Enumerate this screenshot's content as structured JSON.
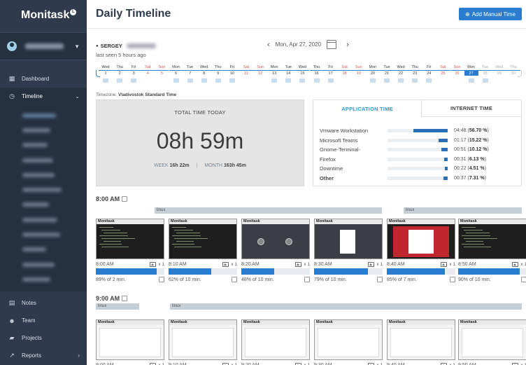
{
  "app": {
    "name": "Monitask"
  },
  "sidebar": {
    "items": [
      {
        "label": "Dashboard",
        "icon": "dashboard-icon"
      },
      {
        "label": "Timeline",
        "icon": "clock-icon"
      }
    ],
    "bottom": [
      {
        "label": "Notes",
        "icon": "note-icon"
      },
      {
        "label": "Team",
        "icon": "team-icon"
      },
      {
        "label": "Projects",
        "icon": "folder-icon"
      },
      {
        "label": "Reports",
        "icon": "chart-icon"
      }
    ]
  },
  "header": {
    "title": "Daily Timeline",
    "add_button": "Add Manual Time"
  },
  "user": {
    "name": "SERGEY",
    "last_seen": "last seen 5 hours ago"
  },
  "date_nav": {
    "date": "Mon, Apr 27, 2020"
  },
  "calendar": {
    "days": [
      {
        "d": "Wed",
        "n": "1"
      },
      {
        "d": "Thu",
        "n": "2"
      },
      {
        "d": "Fri",
        "n": "3"
      },
      {
        "d": "Sat",
        "n": "4",
        "w": true
      },
      {
        "d": "Sun",
        "n": "5",
        "w": true
      },
      {
        "d": "Mon",
        "n": "6"
      },
      {
        "d": "Tue",
        "n": "7"
      },
      {
        "d": "Wed",
        "n": "8"
      },
      {
        "d": "Thu",
        "n": "9"
      },
      {
        "d": "Fri",
        "n": "10"
      },
      {
        "d": "Sat",
        "n": "11",
        "w": true
      },
      {
        "d": "Sun",
        "n": "12",
        "w": true
      },
      {
        "d": "Mon",
        "n": "13"
      },
      {
        "d": "Tue",
        "n": "14"
      },
      {
        "d": "Wed",
        "n": "15"
      },
      {
        "d": "Thu",
        "n": "16"
      },
      {
        "d": "Fri",
        "n": "17"
      },
      {
        "d": "Sat",
        "n": "18",
        "w": true
      },
      {
        "d": "Sun",
        "n": "19",
        "w": true
      },
      {
        "d": "Mon",
        "n": "20"
      },
      {
        "d": "Tue",
        "n": "21"
      },
      {
        "d": "Wed",
        "n": "22"
      },
      {
        "d": "Thu",
        "n": "23"
      },
      {
        "d": "Fri",
        "n": "24"
      },
      {
        "d": "Sat",
        "n": "25",
        "w": true
      },
      {
        "d": "Sun",
        "n": "26",
        "w": true
      },
      {
        "d": "Mon",
        "n": "27",
        "today": true
      },
      {
        "d": "Tue",
        "n": "28",
        "faded": true
      },
      {
        "d": "Wed",
        "n": "29",
        "faded": true
      },
      {
        "d": "Thu",
        "n": "30",
        "faded": true
      }
    ],
    "active_days": [
      "1",
      "2",
      "3",
      "6",
      "7",
      "8",
      "9",
      "10",
      "13",
      "14",
      "15",
      "16",
      "17",
      "20",
      "21",
      "22",
      "23",
      "24",
      "27",
      "28"
    ]
  },
  "timezone": {
    "label": "Timezone:",
    "value": "Vladivostok Standard Time"
  },
  "totals": {
    "label": "TOTAL TIME TODAY",
    "today": "08h 59m",
    "week_label": "WEEK",
    "week": "16h 22m",
    "month_label": "MONTH",
    "month": "163h 45m"
  },
  "tabs": {
    "app": "APPLICATION TIME",
    "internet": "INTERNET TIME"
  },
  "app_usage": [
    {
      "name": "Vmware Workstation",
      "time": "04:48",
      "pct": "56.70 %",
      "fraction": 0.567
    },
    {
      "name": "Microsoft Teams",
      "time": "01:17",
      "pct": "15.22 %",
      "fraction": 0.1522
    },
    {
      "name": "Gnome-Terminal-",
      "time": "00:51",
      "pct": "10.12 %",
      "fraction": 0.1012
    },
    {
      "name": "Firefox",
      "time": "00:31",
      "pct": "6.13 %",
      "fraction": 0.0613
    },
    {
      "name": "Downtime",
      "time": "00:22",
      "pct": "4.51 %",
      "fraction": 0.0451
    },
    {
      "name": "Other",
      "time": "00:37",
      "pct": "7.31 %",
      "fraction": 0.0731
    }
  ],
  "hours": [
    {
      "label": "8:00 AM",
      "project": "linux",
      "shots": [
        {
          "time": "8:00 AM",
          "count": "x 1",
          "activity": "89% of 2 min.",
          "fill": 0.89,
          "title": "Monitask"
        },
        {
          "time": "8:10 AM",
          "count": "x 1",
          "activity": "62% of 10 min.",
          "fill": 0.62,
          "title": "Monitask"
        },
        {
          "time": "8:20 AM",
          "count": "x 1",
          "activity": "48% of 10 min.",
          "fill": 0.48,
          "title": "Monitask"
        },
        {
          "time": "8:30 AM",
          "count": "x 1",
          "activity": "79% of 10 min.",
          "fill": 0.79,
          "title": "Monitask"
        },
        {
          "time": "8:40 AM",
          "count": "x 1",
          "activity": "85% of 7 min.",
          "fill": 0.85,
          "title": "Monitask"
        },
        {
          "time": "8:50 AM",
          "count": "x 1",
          "activity": "90% of 10 min.",
          "fill": 0.9,
          "title": "Monitask"
        }
      ]
    },
    {
      "label": "9:00 AM",
      "project": "linux",
      "shots": [
        {
          "time": "9:00 AM",
          "count": "x 1",
          "title": "Monitask"
        },
        {
          "time": "9:10 AM",
          "count": "x 1",
          "title": "Monitask"
        },
        {
          "time": "9:20 AM",
          "count": "x 1",
          "title": "Monitask"
        },
        {
          "time": "9:30 AM",
          "count": "x 1",
          "title": "Monitask"
        },
        {
          "time": "9:40 AM",
          "count": "x 1",
          "title": "Monitask"
        },
        {
          "time": "9:50 AM",
          "count": "x 1",
          "title": "Monitask"
        }
      ]
    }
  ]
}
